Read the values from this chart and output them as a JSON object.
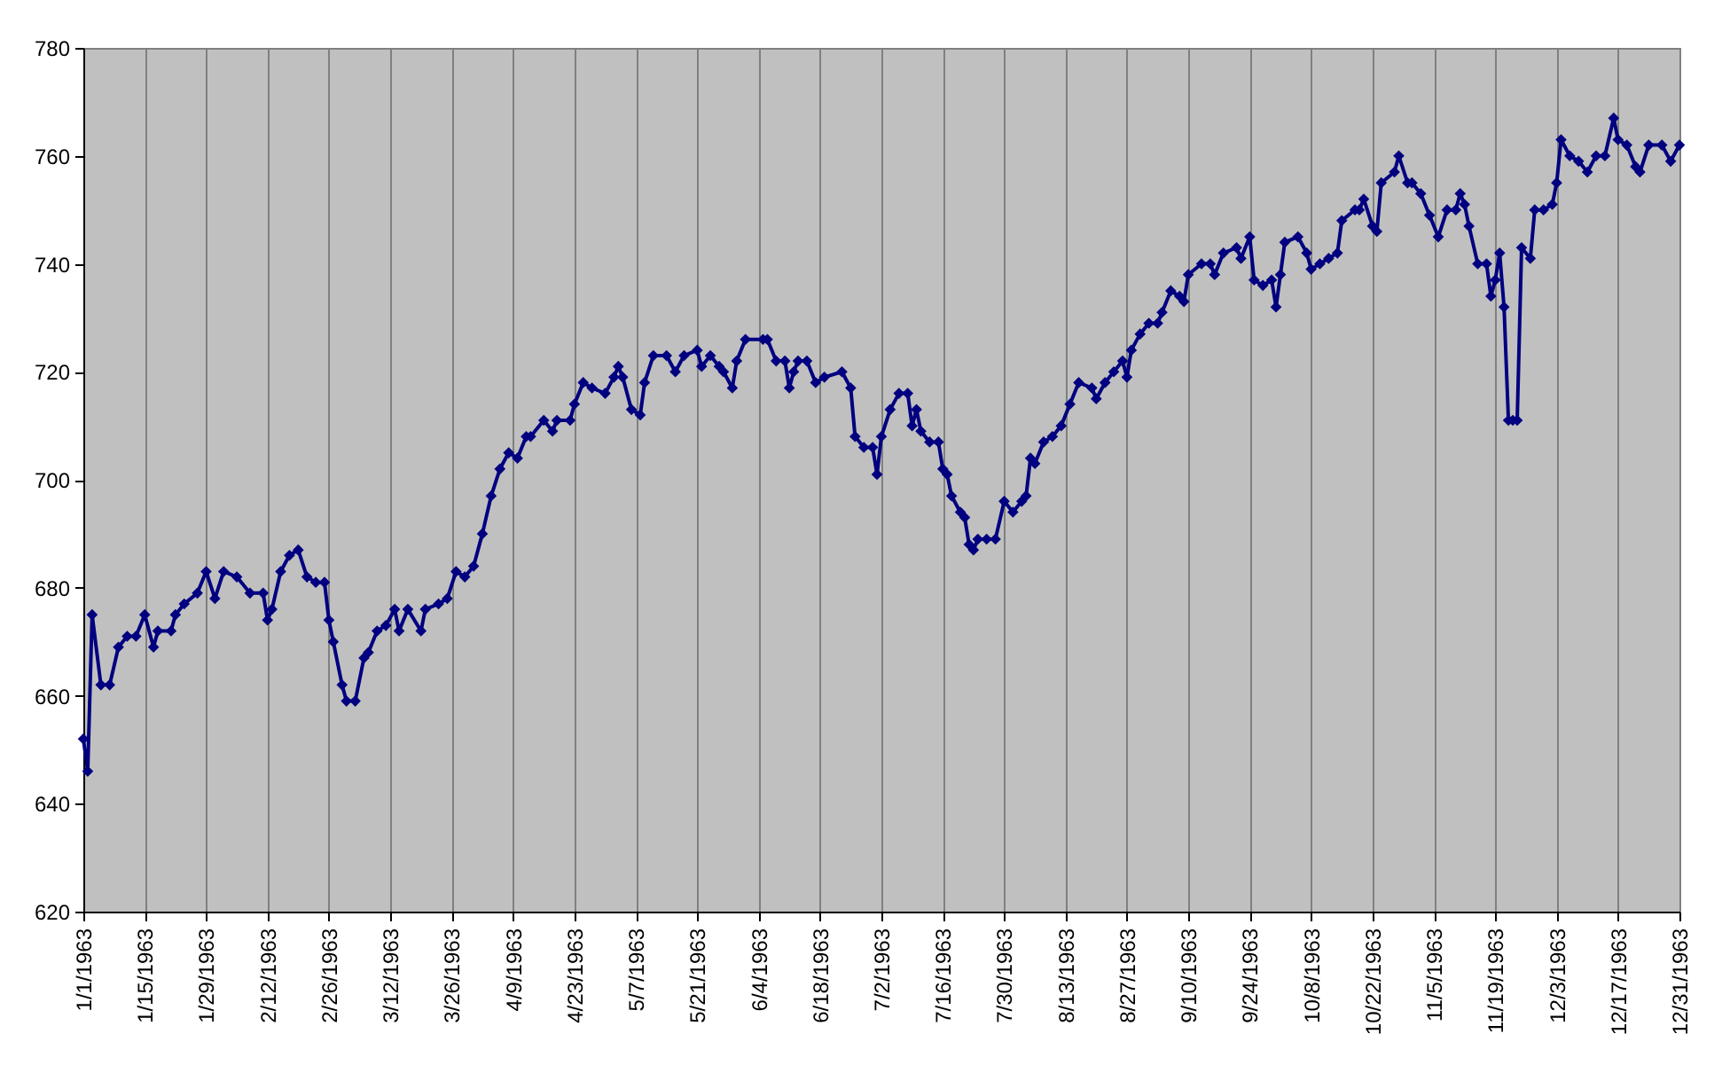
{
  "chart_data": {
    "type": "line",
    "color": "#000080",
    "marker": "diamond",
    "grid": "x",
    "xlim": [
      "1963-01-01",
      "1963-12-31"
    ],
    "xticks": [
      {
        "value": "1963-01-01",
        "label": "1/1/1963"
      },
      {
        "value": "1963-01-15",
        "label": "1/15/1963"
      },
      {
        "value": "1963-01-29",
        "label": "1/29/1963"
      },
      {
        "value": "1963-02-12",
        "label": "2/12/1963"
      },
      {
        "value": "1963-02-26",
        "label": "2/26/1963"
      },
      {
        "value": "1963-03-12",
        "label": "3/12/1963"
      },
      {
        "value": "1963-03-26",
        "label": "3/26/1963"
      },
      {
        "value": "1963-04-09",
        "label": "4/9/1963"
      },
      {
        "value": "1963-04-23",
        "label": "4/23/1963"
      },
      {
        "value": "1963-05-07",
        "label": "5/7/1963"
      },
      {
        "value": "1963-05-21",
        "label": "5/21/1963"
      },
      {
        "value": "1963-06-04",
        "label": "6/4/1963"
      },
      {
        "value": "1963-06-18",
        "label": "6/18/1963"
      },
      {
        "value": "1963-07-02",
        "label": "7/2/1963"
      },
      {
        "value": "1963-07-16",
        "label": "7/16/1963"
      },
      {
        "value": "1963-07-30",
        "label": "7/30/1963"
      },
      {
        "value": "1963-08-13",
        "label": "8/13/1963"
      },
      {
        "value": "1963-08-27",
        "label": "8/27/1963"
      },
      {
        "value": "1963-09-10",
        "label": "9/10/1963"
      },
      {
        "value": "1963-09-24",
        "label": "9/24/1963"
      },
      {
        "value": "1963-10-08",
        "label": "10/8/1963"
      },
      {
        "value": "1963-10-22",
        "label": "10/22/1963"
      },
      {
        "value": "1963-11-05",
        "label": "11/5/1963"
      },
      {
        "value": "1963-11-19",
        "label": "11/19/1963"
      },
      {
        "value": "1963-12-03",
        "label": "12/3/1963"
      },
      {
        "value": "1963-12-17",
        "label": "12/17/1963"
      },
      {
        "value": "1963-12-31",
        "label": "12/31/1963"
      }
    ],
    "ylim": [
      620,
      780
    ],
    "yticks": [
      620,
      640,
      660,
      680,
      700,
      720,
      740,
      760,
      780
    ],
    "x": [
      "1963-01-01",
      "1963-01-02",
      "1963-01-03",
      "1963-01-05",
      "1963-01-07",
      "1963-01-09",
      "1963-01-11",
      "1963-01-13",
      "1963-01-15",
      "1963-01-17",
      "1963-01-18",
      "1963-01-21",
      "1963-01-22",
      "1963-01-24",
      "1963-01-27",
      "1963-01-29",
      "1963-01-31",
      "1963-02-02",
      "1963-02-05",
      "1963-02-08",
      "1963-02-11",
      "1963-02-12",
      "1963-02-13",
      "1963-02-15",
      "1963-02-17",
      "1963-02-19",
      "1963-02-21",
      "1963-02-23",
      "1963-02-25",
      "1963-02-26",
      "1963-02-27",
      "1963-03-01",
      "1963-03-02",
      "1963-03-04",
      "1963-03-06",
      "1963-03-07",
      "1963-03-09",
      "1963-03-11",
      "1963-03-13",
      "1963-03-14",
      "1963-03-16",
      "1963-03-19",
      "1963-03-20",
      "1963-03-23",
      "1963-03-25",
      "1963-03-27",
      "1963-03-29",
      "1963-03-31",
      "1963-04-02",
      "1963-04-04",
      "1963-04-06",
      "1963-04-08",
      "1963-04-10",
      "1963-04-12",
      "1963-04-13",
      "1963-04-16",
      "1963-04-18",
      "1963-04-19",
      "1963-04-22",
      "1963-04-23",
      "1963-04-25",
      "1963-04-27",
      "1963-04-30",
      "1963-05-02",
      "1963-05-03",
      "1963-05-04",
      "1963-05-06",
      "1963-05-08",
      "1963-05-09",
      "1963-05-11",
      "1963-05-14",
      "1963-05-16",
      "1963-05-18",
      "1963-05-21",
      "1963-05-22",
      "1963-05-24",
      "1963-05-26",
      "1963-05-27",
      "1963-05-29",
      "1963-05-30",
      "1963-06-01",
      "1963-06-05",
      "1963-06-06",
      "1963-06-08",
      "1963-06-10",
      "1963-06-11",
      "1963-06-12",
      "1963-06-13",
      "1963-06-15",
      "1963-06-17",
      "1963-06-19",
      "1963-06-23",
      "1963-06-25",
      "1963-06-26",
      "1963-06-28",
      "1963-06-30",
      "1963-07-01",
      "1963-07-02",
      "1963-07-04",
      "1963-07-06",
      "1963-07-08",
      "1963-07-09",
      "1963-07-10",
      "1963-07-11",
      "1963-07-13",
      "1963-07-15",
      "1963-07-16",
      "1963-07-17",
      "1963-07-18",
      "1963-07-20",
      "1963-07-21",
      "1963-07-22",
      "1963-07-23",
      "1963-07-24",
      "1963-07-26",
      "1963-07-28",
      "1963-07-30",
      "1963-08-01",
      "1963-08-03",
      "1963-08-04",
      "1963-08-05",
      "1963-08-06",
      "1963-08-08",
      "1963-08-10",
      "1963-08-12",
      "1963-08-14",
      "1963-08-16",
      "1963-08-19",
      "1963-08-20",
      "1963-08-22",
      "1963-08-24",
      "1963-08-26",
      "1963-08-27",
      "1963-08-28",
      "1963-08-30",
      "1963-09-01",
      "1963-09-03",
      "1963-09-04",
      "1963-09-06",
      "1963-09-08",
      "1963-09-09",
      "1963-09-10",
      "1963-09-13",
      "1963-09-15",
      "1963-09-16",
      "1963-09-18",
      "1963-09-21",
      "1963-09-22",
      "1963-09-24",
      "1963-09-25",
      "1963-09-27",
      "1963-09-29",
      "1963-09-30",
      "1963-10-01",
      "1963-10-02",
      "1963-10-05",
      "1963-10-07",
      "1963-10-08",
      "1963-10-10",
      "1963-10-12",
      "1963-10-14",
      "1963-10-15",
      "1963-10-18",
      "1963-10-19",
      "1963-10-20",
      "1963-10-22",
      "1963-10-23",
      "1963-10-24",
      "1963-10-27",
      "1963-10-28",
      "1963-10-30",
      "1963-10-31",
      "1963-11-02",
      "1963-11-04",
      "1963-11-06",
      "1963-11-08",
      "1963-11-10",
      "1963-11-11",
      "1963-11-12",
      "1963-11-13",
      "1963-11-15",
      "1963-11-17",
      "1963-11-18",
      "1963-11-19",
      "1963-11-20",
      "1963-11-21",
      "1963-11-22",
      "1963-11-23",
      "1963-11-24",
      "1963-11-25",
      "1963-11-27",
      "1963-11-28",
      "1963-11-30",
      "1963-12-02",
      "1963-12-03",
      "1963-12-04",
      "1963-12-06",
      "1963-12-08",
      "1963-12-10",
      "1963-12-12",
      "1963-12-14",
      "1963-12-16",
      "1963-12-17",
      "1963-12-19",
      "1963-12-21",
      "1963-12-22",
      "1963-12-24",
      "1963-12-27",
      "1963-12-29",
      "1963-12-31"
    ],
    "values": [
      652,
      646,
      675,
      662,
      662,
      669,
      671,
      671,
      675,
      669,
      672,
      672,
      675,
      677,
      679,
      683,
      678,
      683,
      682,
      679,
      679,
      674,
      676,
      683,
      686,
      687,
      682,
      681,
      681,
      674,
      670,
      662,
      659,
      659,
      667,
      668,
      672,
      673,
      676,
      672,
      676,
      672,
      676,
      677,
      678,
      683,
      682,
      684,
      690,
      697,
      702,
      705,
      704,
      708,
      708,
      711,
      709,
      711,
      711,
      714,
      718,
      717,
      716,
      719,
      721,
      719,
      713,
      712,
      718,
      723,
      723,
      720,
      723,
      724,
      721,
      723,
      721,
      720,
      717,
      722,
      726,
      726,
      726,
      722,
      722,
      717,
      720,
      722,
      722,
      718,
      719,
      720,
      717,
      708,
      706,
      706,
      701,
      708,
      713,
      716,
      716,
      710,
      713,
      709,
      707,
      707,
      702,
      701,
      697,
      694,
      693,
      688,
      687,
      689,
      689,
      689,
      696,
      694,
      696,
      697,
      704,
      703,
      707,
      708,
      710,
      714,
      718,
      717,
      715,
      718,
      720,
      722,
      719,
      724,
      727,
      729,
      729,
      731,
      735,
      734,
      733,
      738,
      740,
      740,
      738,
      742,
      743,
      741,
      745,
      737,
      736,
      737,
      732,
      738,
      744,
      745,
      742,
      739,
      740,
      741,
      742,
      748,
      750,
      750,
      752,
      747,
      746,
      755,
      757,
      760,
      755,
      755,
      753,
      749,
      745,
      750,
      750,
      753,
      751,
      747,
      740,
      740,
      734,
      737,
      742,
      732,
      711,
      711,
      711,
      743,
      741,
      750,
      750,
      751,
      755,
      763,
      760,
      759,
      757,
      760,
      760,
      767,
      763,
      762,
      758,
      757,
      762,
      762,
      759,
      762
    ]
  }
}
